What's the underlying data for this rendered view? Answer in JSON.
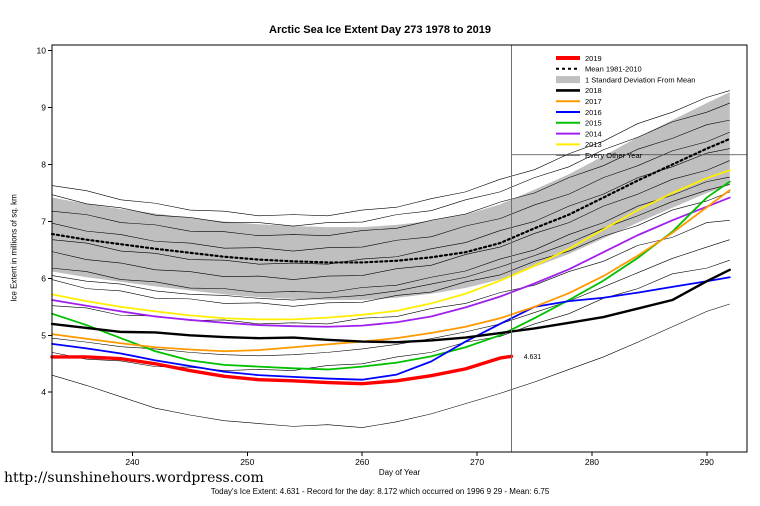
{
  "title": "Arctic Sea Ice Extent Day 273 1978 to 2019",
  "footer": {
    "url": "http://sunshinehours.wordpress.com",
    "caption": "Today's Ice Extent: 4.631  - Record for the day: 8.172 which occurred on 1996 9 29  - Mean: 6.75"
  },
  "chart_data": {
    "type": "line",
    "title": "Arctic Sea Ice Extent Day 273 1978 to 2019",
    "xlabel": "Day of Year",
    "ylabel": "Ice Extent in millions of sq. km",
    "grid": false,
    "legend_position": "top-right",
    "xlim": [
      233,
      293.5
    ],
    "ylim": [
      2.95,
      10.1
    ],
    "x_ticks": [
      240,
      250,
      260,
      270,
      280,
      290
    ],
    "y_ticks": [
      4,
      5,
      6,
      7,
      8,
      9,
      10
    ],
    "x": [
      233,
      236,
      239,
      242,
      245,
      248,
      251,
      254,
      257,
      260,
      263,
      266,
      269,
      272,
      275,
      278,
      281,
      284,
      287,
      290,
      292
    ],
    "band": {
      "label": "1 Standard Deviation From Mean",
      "color": "#bfbfbf",
      "upper": [
        7.42,
        7.31,
        7.22,
        7.14,
        7.06,
        7.0,
        6.95,
        6.92,
        6.9,
        6.9,
        6.94,
        7.01,
        7.12,
        7.3,
        7.56,
        7.83,
        8.15,
        8.48,
        8.78,
        9.08,
        9.27
      ],
      "lower": [
        6.12,
        6.02,
        5.94,
        5.86,
        5.79,
        5.72,
        5.67,
        5.64,
        5.62,
        5.62,
        5.66,
        5.73,
        5.83,
        5.98,
        6.2,
        6.43,
        6.7,
        6.98,
        7.24,
        7.5,
        7.64
      ]
    },
    "series": [
      {
        "name": "Mean 1981-2010",
        "color": "#000000",
        "width": 2.2,
        "dash": "2,3",
        "values": [
          6.78,
          6.68,
          6.6,
          6.52,
          6.45,
          6.38,
          6.33,
          6.3,
          6.28,
          6.28,
          6.31,
          6.37,
          6.46,
          6.62,
          6.88,
          7.12,
          7.42,
          7.72,
          8.0,
          8.28,
          8.45
        ]
      },
      {
        "name": "2013",
        "color": "#ffee00",
        "width": 1.8,
        "values": [
          5.72,
          5.6,
          5.5,
          5.42,
          5.35,
          5.3,
          5.28,
          5.28,
          5.31,
          5.36,
          5.43,
          5.56,
          5.73,
          5.96,
          6.22,
          6.52,
          6.86,
          7.2,
          7.5,
          7.76,
          7.9
        ]
      },
      {
        "name": "2014",
        "color": "#a020f0",
        "width": 1.8,
        "values": [
          5.62,
          5.52,
          5.42,
          5.33,
          5.27,
          5.22,
          5.18,
          5.16,
          5.15,
          5.17,
          5.23,
          5.33,
          5.49,
          5.68,
          5.91,
          6.16,
          6.46,
          6.76,
          7.02,
          7.26,
          7.42
        ]
      },
      {
        "name": "2015",
        "color": "#00c000",
        "width": 1.8,
        "values": [
          5.38,
          5.18,
          4.95,
          4.72,
          4.56,
          4.48,
          4.45,
          4.42,
          4.4,
          4.45,
          4.52,
          4.63,
          4.79,
          5.0,
          5.3,
          5.62,
          5.96,
          6.36,
          6.82,
          7.42,
          7.7
        ]
      },
      {
        "name": "2016",
        "color": "#0000ff",
        "width": 1.8,
        "values": [
          4.85,
          4.77,
          4.68,
          4.56,
          4.46,
          4.36,
          4.3,
          4.27,
          4.24,
          4.22,
          4.31,
          4.54,
          4.89,
          5.2,
          5.5,
          5.6,
          5.66,
          5.75,
          5.85,
          5.95,
          6.02
        ]
      },
      {
        "name": "2017",
        "color": "#ff9900",
        "width": 1.8,
        "values": [
          5.02,
          4.94,
          4.86,
          4.79,
          4.75,
          4.72,
          4.74,
          4.79,
          4.84,
          4.89,
          4.95,
          5.04,
          5.15,
          5.3,
          5.5,
          5.74,
          6.04,
          6.4,
          6.8,
          7.25,
          7.55
        ]
      },
      {
        "name": "2018",
        "color": "#000000",
        "width": 2.4,
        "values": [
          5.2,
          5.13,
          5.06,
          5.05,
          5.0,
          4.97,
          4.95,
          4.96,
          4.92,
          4.89,
          4.88,
          4.91,
          4.96,
          5.04,
          5.12,
          5.22,
          5.32,
          5.47,
          5.62,
          5.95,
          6.15
        ]
      },
      {
        "name": "2019",
        "color": "#ff0000",
        "width": 3.4,
        "x": [
          233,
          236,
          239,
          242,
          245,
          248,
          251,
          254,
          257,
          260,
          263,
          266,
          269,
          272,
          273
        ],
        "values": [
          4.62,
          4.62,
          4.59,
          4.5,
          4.38,
          4.28,
          4.22,
          4.2,
          4.17,
          4.15,
          4.2,
          4.29,
          4.41,
          4.6,
          4.631
        ]
      }
    ],
    "other_years": {
      "label": "Every Other Year",
      "color": "#000000",
      "width": 0.6,
      "lines": [
        [
          4.3,
          4.12,
          3.92,
          3.72,
          3.6,
          3.5,
          3.45,
          3.4,
          3.43,
          3.38,
          3.48,
          3.62,
          3.8,
          3.98,
          4.18,
          4.4,
          4.62,
          4.88,
          5.15,
          5.42,
          5.55
        ],
        [
          4.7,
          4.58,
          4.55,
          4.45,
          4.44,
          4.38,
          4.4,
          4.38,
          4.47,
          4.5,
          4.62,
          4.7,
          4.88,
          4.98,
          5.2,
          5.38,
          5.65,
          5.82,
          6.08,
          6.18,
          6.32
        ],
        [
          4.95,
          4.88,
          4.8,
          4.76,
          4.7,
          4.66,
          4.64,
          4.66,
          4.7,
          4.76,
          4.84,
          4.94,
          5.06,
          5.2,
          5.4,
          5.6,
          5.85,
          6.1,
          6.35,
          6.55,
          6.68
        ],
        [
          5.52,
          5.48,
          5.35,
          5.34,
          5.26,
          5.27,
          5.2,
          5.22,
          5.2,
          5.3,
          5.33,
          5.47,
          5.56,
          5.75,
          5.88,
          6.12,
          6.3,
          6.58,
          6.72,
          6.98,
          7.02
        ],
        [
          5.98,
          5.82,
          5.78,
          5.65,
          5.64,
          5.56,
          5.57,
          5.51,
          5.57,
          5.58,
          5.7,
          5.76,
          5.94,
          6.06,
          6.3,
          6.48,
          6.74,
          6.93,
          7.2,
          7.36,
          7.52
        ],
        [
          6.05,
          5.95,
          5.9,
          5.78,
          5.72,
          5.7,
          5.65,
          5.62,
          5.66,
          5.7,
          5.78,
          5.9,
          6.02,
          6.2,
          6.4,
          6.62,
          6.88,
          7.1,
          7.35,
          7.55,
          7.65
        ],
        [
          6.18,
          6.12,
          5.98,
          5.94,
          5.83,
          5.82,
          5.75,
          5.77,
          5.75,
          5.84,
          5.88,
          6.02,
          6.13,
          6.34,
          6.5,
          6.77,
          6.98,
          7.27,
          7.46,
          7.7,
          7.78
        ],
        [
          6.47,
          6.33,
          6.27,
          6.15,
          6.12,
          6.03,
          6.04,
          5.98,
          6.04,
          6.05,
          6.17,
          6.23,
          6.42,
          6.55,
          6.79,
          6.98,
          7.27,
          7.48,
          7.74,
          7.9,
          8.07
        ],
        [
          6.68,
          6.62,
          6.48,
          6.44,
          6.33,
          6.32,
          6.25,
          6.27,
          6.25,
          6.34,
          6.38,
          6.52,
          6.63,
          6.84,
          7.0,
          7.27,
          7.48,
          7.77,
          7.96,
          8.2,
          8.28
        ],
        [
          6.97,
          6.83,
          6.77,
          6.65,
          6.62,
          6.53,
          6.54,
          6.48,
          6.54,
          6.55,
          6.67,
          6.73,
          6.92,
          7.05,
          7.29,
          7.48,
          7.77,
          7.98,
          8.24,
          8.4,
          8.57
        ],
        [
          7.18,
          7.12,
          6.98,
          6.94,
          6.83,
          6.82,
          6.75,
          6.77,
          6.75,
          6.84,
          6.88,
          7.02,
          7.13,
          7.34,
          7.5,
          7.77,
          7.98,
          8.27,
          8.46,
          8.7,
          8.78
        ],
        [
          7.47,
          7.31,
          7.24,
          7.11,
          7.07,
          6.98,
          6.98,
          6.92,
          6.98,
          6.99,
          7.12,
          7.19,
          7.38,
          7.52,
          7.77,
          7.96,
          8.26,
          8.48,
          8.75,
          8.92,
          9.08
        ],
        [
          7.63,
          7.54,
          7.38,
          7.32,
          7.2,
          7.18,
          7.1,
          7.12,
          7.1,
          7.2,
          7.25,
          7.4,
          7.52,
          7.74,
          7.91,
          8.19,
          8.41,
          8.72,
          8.92,
          9.18,
          9.3
        ]
      ]
    },
    "reference_lines": {
      "vertical_x": 273,
      "horizontal_y": 8.172,
      "horizontal_from_x": 273
    },
    "annotation": {
      "text": "4.631",
      "x": 273.8,
      "y": 4.631,
      "color": "#ff0000"
    },
    "legend": [
      {
        "label": "2019",
        "color": "#ff0000",
        "type": "line",
        "width": 4
      },
      {
        "label": "Mean 1981-2010",
        "color": "#000000",
        "type": "dashed",
        "width": 2
      },
      {
        "label": "1 Standard Deviation From Mean",
        "color": "#bfbfbf",
        "type": "box"
      },
      {
        "label": "2018",
        "color": "#000000",
        "type": "line",
        "width": 2.6
      },
      {
        "label": "2017",
        "color": "#ff9900",
        "type": "line",
        "width": 2
      },
      {
        "label": "2016",
        "color": "#0000ff",
        "type": "line",
        "width": 2
      },
      {
        "label": "2015",
        "color": "#00c000",
        "type": "line",
        "width": 2
      },
      {
        "label": "2014",
        "color": "#a020f0",
        "type": "line",
        "width": 2
      },
      {
        "label": "2013",
        "color": "#ffee00",
        "type": "line",
        "width": 2
      },
      {
        "label": "Every Other Year",
        "color": "#000000",
        "type": "line",
        "width": 0.7
      }
    ]
  }
}
